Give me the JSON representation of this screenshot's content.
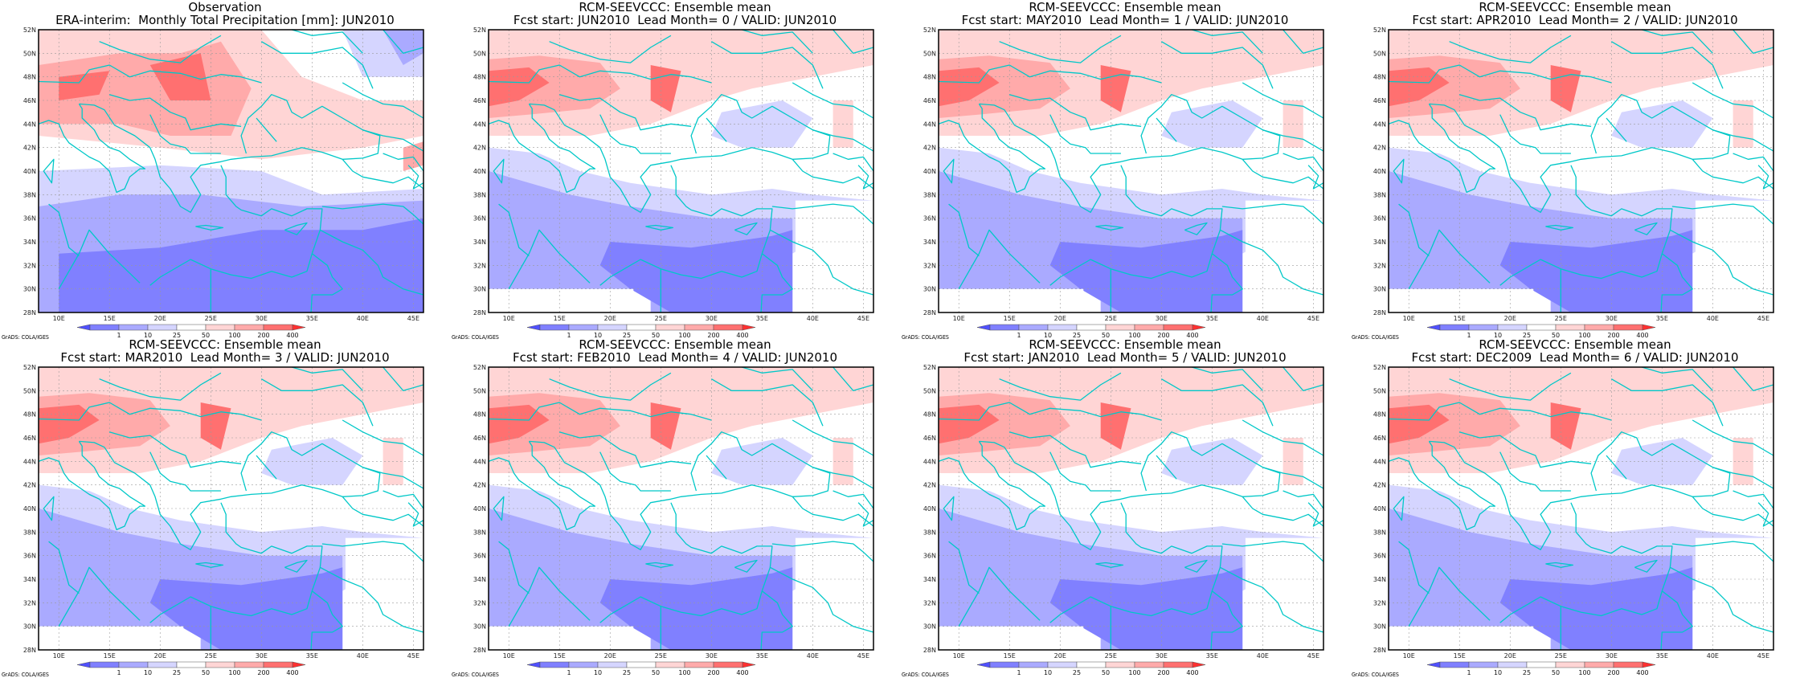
{
  "credit": "GrADS: COLA/IGES",
  "colorbar": {
    "labels": [
      "1",
      "10",
      "25",
      "50",
      "100",
      "200",
      "400"
    ],
    "colors": [
      "#5050ff",
      "#8080ff",
      "#aaaaff",
      "#d5d5ff",
      "#ffffff",
      "#ffd5d5",
      "#ffaaaa",
      "#ff7070",
      "#ff3030"
    ]
  },
  "axes": {
    "lon_labels": [
      "10E",
      "15E",
      "20E",
      "25E",
      "30E",
      "35E",
      "40E",
      "45E"
    ],
    "lat_labels": [
      "28N",
      "30N",
      "32N",
      "34N",
      "36N",
      "38N",
      "40N",
      "42N",
      "44N",
      "46N",
      "48N",
      "50N",
      "52N"
    ]
  },
  "coast_color": "#00c8c8",
  "panels": [
    {
      "title1": "Observation",
      "title2": "ERA-interim:  Monthly Total Precipitation [mm]: JUN2010",
      "variant": "obs"
    },
    {
      "title1": "RCM-SEEVCCC: Ensemble mean",
      "title2": "Fcst start: JUN2010  Lead Month= 0 / VALID: JUN2010",
      "variant": "fc"
    },
    {
      "title1": "RCM-SEEVCCC: Ensemble mean",
      "title2": "Fcst start: MAY2010  Lead Month= 1 / VALID: JUN2010",
      "variant": "fc"
    },
    {
      "title1": "RCM-SEEVCCC: Ensemble mean",
      "title2": "Fcst start: APR2010  Lead Month= 2 / VALID: JUN2010",
      "variant": "fc"
    },
    {
      "title1": "RCM-SEEVCCC: Ensemble mean",
      "title2": "Fcst start: MAR2010  Lead Month= 3 / VALID: JUN2010",
      "variant": "fc"
    },
    {
      "title1": "RCM-SEEVCCC: Ensemble mean",
      "title2": "Fcst start: FEB2010  Lead Month= 4 / VALID: JUN2010",
      "variant": "fc"
    },
    {
      "title1": "RCM-SEEVCCC: Ensemble mean",
      "title2": "Fcst start: JAN2010  Lead Month= 5 / VALID: JUN2010",
      "variant": "fc"
    },
    {
      "title1": "RCM-SEEVCCC: Ensemble mean",
      "title2": "Fcst start: DEC2009  Lead Month= 6 / VALID: JUN2010",
      "variant": "fc"
    }
  ]
}
